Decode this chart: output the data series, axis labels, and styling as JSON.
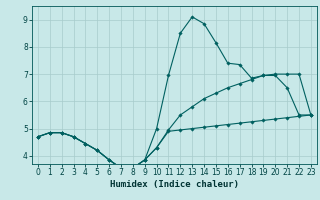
{
  "xlabel": "Humidex (Indice chaleur)",
  "bg_color": "#c8e8e8",
  "grid_color": "#a8cccc",
  "line_color": "#006060",
  "xlim": [
    -0.5,
    23.5
  ],
  "ylim": [
    3.7,
    9.5
  ],
  "xticks": [
    0,
    1,
    2,
    3,
    4,
    5,
    6,
    7,
    8,
    9,
    10,
    11,
    12,
    13,
    14,
    15,
    16,
    17,
    18,
    19,
    20,
    21,
    22,
    23
  ],
  "yticks": [
    4,
    5,
    6,
    7,
    8,
    9
  ],
  "line1_x": [
    0,
    1,
    2,
    3,
    4,
    5,
    6,
    7,
    8,
    9,
    10,
    11,
    12,
    13,
    14,
    15,
    16,
    17,
    18,
    19,
    20,
    21,
    22,
    23
  ],
  "line1_y": [
    4.7,
    4.85,
    4.85,
    4.7,
    4.45,
    4.2,
    3.85,
    3.55,
    3.55,
    3.85,
    5.0,
    6.95,
    8.5,
    9.1,
    8.85,
    8.15,
    7.4,
    7.35,
    6.85,
    6.95,
    6.95,
    6.5,
    5.5,
    5.5
  ],
  "line2_x": [
    0,
    1,
    2,
    3,
    4,
    5,
    6,
    7,
    8,
    9,
    10,
    11,
    12,
    13,
    14,
    15,
    16,
    17,
    18,
    19,
    20,
    21,
    22,
    23
  ],
  "line2_y": [
    4.7,
    4.85,
    4.85,
    4.7,
    4.45,
    4.2,
    3.85,
    3.55,
    3.55,
    3.85,
    4.3,
    4.95,
    5.5,
    5.8,
    6.1,
    6.3,
    6.5,
    6.65,
    6.8,
    6.95,
    7.0,
    7.0,
    7.0,
    5.5
  ],
  "line3_x": [
    0,
    1,
    2,
    3,
    4,
    5,
    6,
    7,
    8,
    9,
    10,
    11,
    12,
    13,
    14,
    15,
    16,
    17,
    18,
    19,
    20,
    21,
    22,
    23
  ],
  "line3_y": [
    4.7,
    4.85,
    4.85,
    4.7,
    4.45,
    4.2,
    3.85,
    3.55,
    3.55,
    3.85,
    4.3,
    4.9,
    4.95,
    5.0,
    5.05,
    5.1,
    5.15,
    5.2,
    5.25,
    5.3,
    5.35,
    5.4,
    5.45,
    5.5
  ]
}
